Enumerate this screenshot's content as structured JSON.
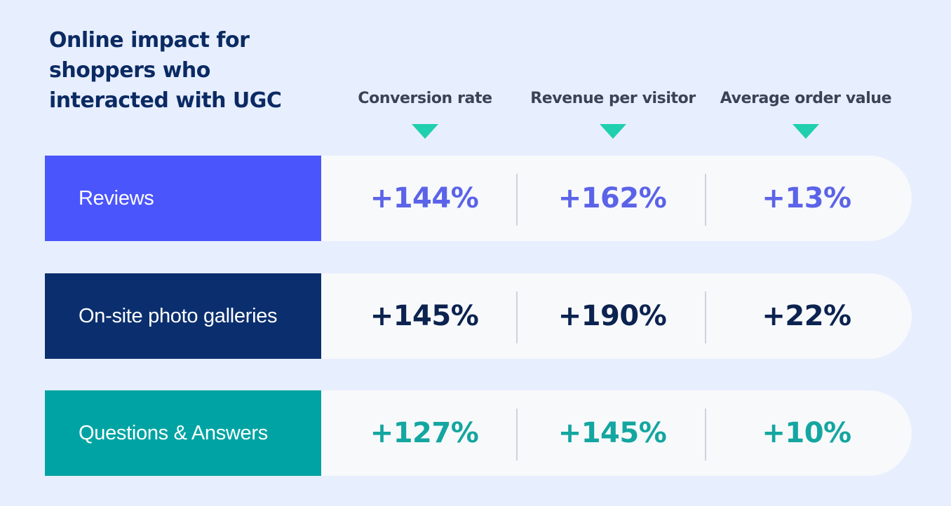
{
  "title": "Online impact for shoppers who interacted with UGC",
  "columns": [
    {
      "label": "Conversion rate"
    },
    {
      "label": "Revenue per visitor"
    },
    {
      "label": "Average order value"
    }
  ],
  "rows": [
    {
      "label": "Reviews",
      "label_bg": "#4b55fc",
      "value_color": "#5b63e8",
      "values": [
        "+144%",
        "+162%",
        "+13%"
      ]
    },
    {
      "label": "On-site photo galleries",
      "label_bg": "#0b2f6e",
      "value_color": "#0c2350",
      "values": [
        "+145%",
        "+190%",
        "+22%"
      ]
    },
    {
      "label": "Questions & Answers",
      "label_bg": "#00a3a3",
      "value_color": "#14a6a0",
      "values": [
        "+127%",
        "+145%",
        "+10%"
      ]
    }
  ],
  "accent_color": "#1fcfae"
}
